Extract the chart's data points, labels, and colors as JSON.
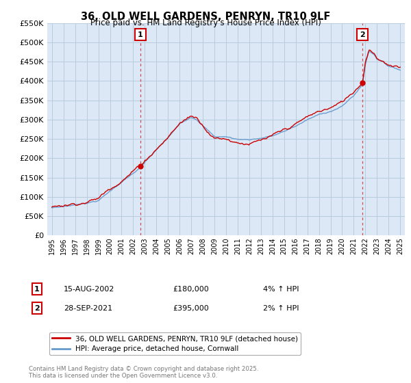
{
  "title": "36, OLD WELL GARDENS, PENRYN, TR10 9LF",
  "subtitle": "Price paid vs. HM Land Registry's House Price Index (HPI)",
  "red_label": "36, OLD WELL GARDENS, PENRYN, TR10 9LF (detached house)",
  "blue_label": "HPI: Average price, detached house, Cornwall",
  "transaction1_date": "15-AUG-2002",
  "transaction1_price": "£180,000",
  "transaction1_hpi": "4% ↑ HPI",
  "transaction1_year": 2002.625,
  "transaction1_value": 180000,
  "transaction2_date": "28-SEP-2021",
  "transaction2_price": "£395,000",
  "transaction2_hpi": "2% ↑ HPI",
  "transaction2_year": 2021.75,
  "transaction2_value": 395000,
  "footer": "Contains HM Land Registry data © Crown copyright and database right 2025.\nThis data is licensed under the Open Government Licence v3.0.",
  "ylim": [
    0,
    550000
  ],
  "yticks": [
    0,
    50000,
    100000,
    150000,
    200000,
    250000,
    300000,
    350000,
    400000,
    450000,
    500000,
    550000
  ],
  "red_color": "#cc0000",
  "blue_color": "#6699cc",
  "dashed_color": "#cc3333",
  "bg_color": "#dce8f5",
  "grid_color": "#b8ccdd"
}
